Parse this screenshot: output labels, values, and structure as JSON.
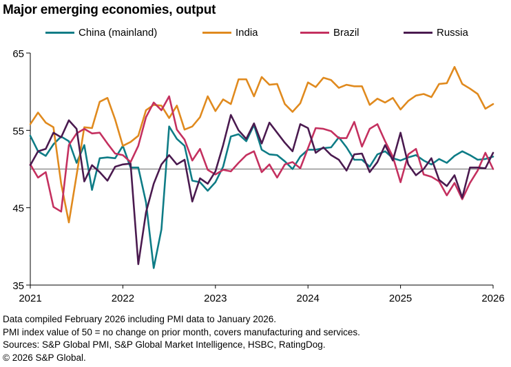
{
  "chart_data": {
    "type": "line",
    "title": "Major emerging economies, output",
    "xlabel": "",
    "ylabel": "",
    "ylim": [
      35,
      65
    ],
    "xlim": [
      "2021-01",
      "2026-01"
    ],
    "yticks": [
      35,
      45,
      55,
      65
    ],
    "xticks": [
      "2021",
      "2022",
      "2023",
      "2024",
      "2025",
      "2026"
    ],
    "reference_line": 50,
    "legend_position": "top",
    "series": [
      {
        "name": "China (mainland)",
        "color": "#0e7c86",
        "values": [
          54.3,
          52.3,
          51.7,
          53.2,
          54.2,
          53.6,
          50.8,
          53.1,
          47.3,
          51.4,
          51.5,
          51.4,
          53.0,
          50.2,
          50.2,
          45.7,
          37.2,
          42.2,
          55.5,
          53.9,
          53.0,
          48.5,
          48.3,
          47.2,
          48.3,
          50.3,
          54.2,
          54.5,
          53.6,
          55.7,
          52.5,
          51.9,
          51.8,
          51.0,
          50.0,
          51.6,
          52.5,
          52.5,
          52.7,
          52.8,
          54.1,
          52.8,
          51.2,
          51.2,
          50.3,
          51.9,
          52.3,
          51.4,
          51.1,
          51.5,
          51.8,
          51.1,
          50.6,
          51.3,
          50.8,
          51.7,
          52.3,
          51.8,
          51.2,
          51.3,
          51.6
        ]
      },
      {
        "name": "India",
        "color": "#e08a1e",
        "values": [
          55.8,
          57.3,
          56.0,
          55.4,
          48.1,
          43.1,
          49.2,
          55.4,
          55.3,
          58.7,
          59.2,
          56.4,
          53.0,
          53.5,
          54.3,
          57.6,
          58.3,
          58.2,
          56.6,
          58.2,
          55.1,
          55.5,
          56.7,
          59.4,
          57.5,
          59.0,
          58.4,
          61.6,
          61.6,
          59.4,
          61.9,
          60.9,
          61.0,
          58.4,
          57.4,
          58.5,
          61.2,
          60.6,
          61.8,
          61.5,
          60.5,
          60.9,
          60.7,
          60.7,
          58.3,
          59.1,
          58.6,
          59.2,
          57.7,
          58.8,
          59.5,
          59.7,
          59.3,
          61.0,
          61.1,
          63.2,
          61.0,
          60.4,
          59.7,
          57.8,
          58.4
        ]
      },
      {
        "name": "Brazil",
        "color": "#c4305f",
        "values": [
          50.6,
          48.9,
          49.6,
          45.1,
          44.5,
          53.1,
          54.6,
          55.2,
          54.6,
          54.7,
          53.3,
          52.0,
          51.8,
          50.9,
          53.0,
          56.7,
          58.6,
          57.6,
          59.4,
          55.1,
          53.8,
          51.1,
          52.6,
          49.9,
          49.3,
          49.9,
          49.7,
          50.8,
          51.8,
          52.3,
          49.6,
          50.6,
          48.9,
          50.6,
          50.9,
          50.1,
          52.7,
          55.3,
          55.2,
          54.9,
          54.0,
          54.0,
          56.1,
          52.9,
          55.2,
          55.8,
          53.6,
          51.6,
          48.3,
          51.9,
          52.6,
          49.3,
          49.0,
          48.4,
          46.6,
          48.2,
          46.1,
          48.2,
          49.8,
          52.1,
          50.0
        ]
      },
      {
        "name": "Russia",
        "color": "#4a1a4f",
        "values": [
          50.5,
          52.3,
          52.6,
          54.7,
          54.1,
          56.3,
          55.2,
          48.4,
          50.5,
          49.6,
          48.5,
          50.3,
          50.6,
          50.7,
          37.7,
          44.4,
          48.1,
          50.6,
          51.8,
          50.6,
          51.2,
          45.8,
          48.8,
          48.1,
          49.7,
          53.1,
          57.0,
          55.0,
          53.9,
          55.9,
          53.3,
          56.0,
          54.7,
          53.4,
          52.3,
          55.8,
          55.3,
          52.1,
          52.8,
          51.8,
          51.2,
          49.8,
          51.9,
          52.0,
          49.6,
          50.9,
          53.1,
          51.1,
          54.7,
          50.6,
          49.2,
          50.0,
          51.4,
          48.6,
          47.8,
          49.2,
          46.3,
          50.2,
          50.2,
          50.1,
          52.1
        ]
      }
    ]
  },
  "notes": [
    "Data compiled February 2026 including PMI data to January 2026.",
    "PMI index value of 50 = no change on prior month, covers manufacturing and services.",
    "Sources: S&P Global PMI, S&P Global Market Intelligence, HSBC, RatingDog.",
    "© 2026 S&P Global."
  ]
}
